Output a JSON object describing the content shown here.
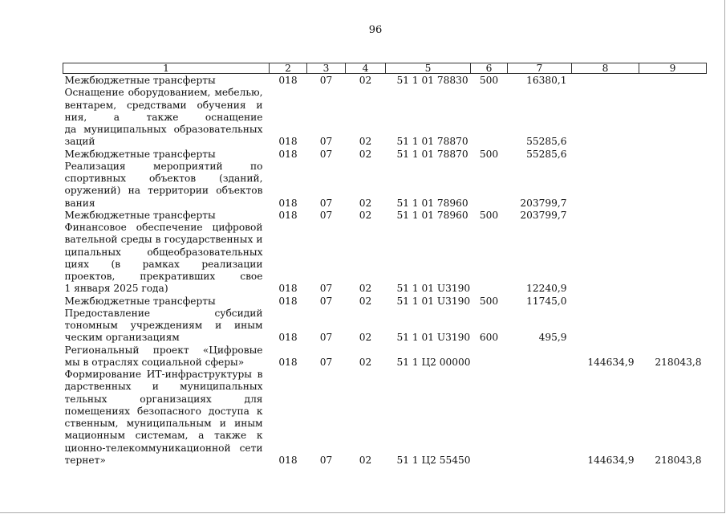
{
  "page_number": "96",
  "table": {
    "headers": [
      "1",
      "2",
      "3",
      "4",
      "5",
      "6",
      "7",
      "8",
      "9"
    ],
    "rows": [
      {
        "lines": [
          "Межбюджетные трансферты"
        ],
        "c2": "018",
        "c3": "07",
        "c4": "02",
        "c5": "51 1 01 78830",
        "c6": "500",
        "c7": "16380,1",
        "c8": "",
        "c9": ""
      },
      {
        "lines": [
          "Оснащение оборудованием, мебелью, ин-",
          "вентарем, средствами обучения и воспита-",
          "ния, а также оснащение библиотечного фон-",
          "да муниципальных образовательных органи-",
          "заций"
        ],
        "c2": "018",
        "c3": "07",
        "c4": "02",
        "c5": "51 1 01 78870",
        "c6": "",
        "c7": "55285,6",
        "c8": "",
        "c9": ""
      },
      {
        "lines": [
          "Межбюджетные трансферты"
        ],
        "c2": "018",
        "c3": "07",
        "c4": "02",
        "c5": "51 1 01 78870",
        "c6": "500",
        "c7": "55285,6",
        "c8": "",
        "c9": ""
      },
      {
        "lines": [
          "Реализация мероприятий по строительству",
          "спортивных объектов (зданий, строений, со-",
          "оружений) на территории объектов образо-",
          "вания"
        ],
        "c2": "018",
        "c3": "07",
        "c4": "02",
        "c5": "51 1 01 78960",
        "c6": "",
        "c7": "203799,7",
        "c8": "",
        "c9": ""
      },
      {
        "lines": [
          "Межбюджетные трансферты"
        ],
        "c2": "018",
        "c3": "07",
        "c4": "02",
        "c5": "51 1 01 78960",
        "c6": "500",
        "c7": "203799,7",
        "c8": "",
        "c9": ""
      },
      {
        "lines": [
          "Финансовое обеспечение цифровой образо-",
          "вательной среды в государственных и муни-",
          "ципальных общеобразовательных организа-",
          "циях (в рамках реализации федеральных",
          "проектов, прекративших свое действие до",
          "1 января 2025 года)"
        ],
        "c2": "018",
        "c3": "07",
        "c4": "02",
        "c5": "51 1 01 U3190",
        "c6": "",
        "c7": "12240,9",
        "c8": "",
        "c9": ""
      },
      {
        "lines": [
          "Межбюджетные трансферты"
        ],
        "c2": "018",
        "c3": "07",
        "c4": "02",
        "c5": "51 1 01 U3190",
        "c6": "500",
        "c7": "11745,0",
        "c8": "",
        "c9": ""
      },
      {
        "lines": [
          "Предоставление субсидий бюджетным, ав-",
          "тономным учреждениям и иным некоммер-",
          "ческим организациям"
        ],
        "c2": "018",
        "c3": "07",
        "c4": "02",
        "c5": "51 1 01 U3190",
        "c6": "600",
        "c7": "495,9",
        "c8": "",
        "c9": ""
      },
      {
        "lines": [
          "Региональный проект «Цифровые платфор-",
          "мы в отраслях социальной сферы»"
        ],
        "c2": "018",
        "c3": "07",
        "c4": "02",
        "c5": "51 1 Ц2 00000",
        "c6": "",
        "c7": "",
        "c8": "144634,9",
        "c9": "218043,8"
      },
      {
        "lines": [
          "Формирование ИТ-инфраструктуры в госу-",
          "дарственных и муниципальных образова-",
          "тельных организациях для обеспечения в",
          "помещениях безопасного доступа к государ-",
          "ственным, муниципальным и иным инфор-",
          "мационным системам, а также к информа-",
          "ционно-телекоммуникационной сети «Ин-",
          "тернет»"
        ],
        "c2": "018",
        "c3": "07",
        "c4": "02",
        "c5": "51 1 Ц2 55450",
        "c6": "",
        "c7": "",
        "c8": "144634,9",
        "c9": "218043,8"
      }
    ]
  }
}
